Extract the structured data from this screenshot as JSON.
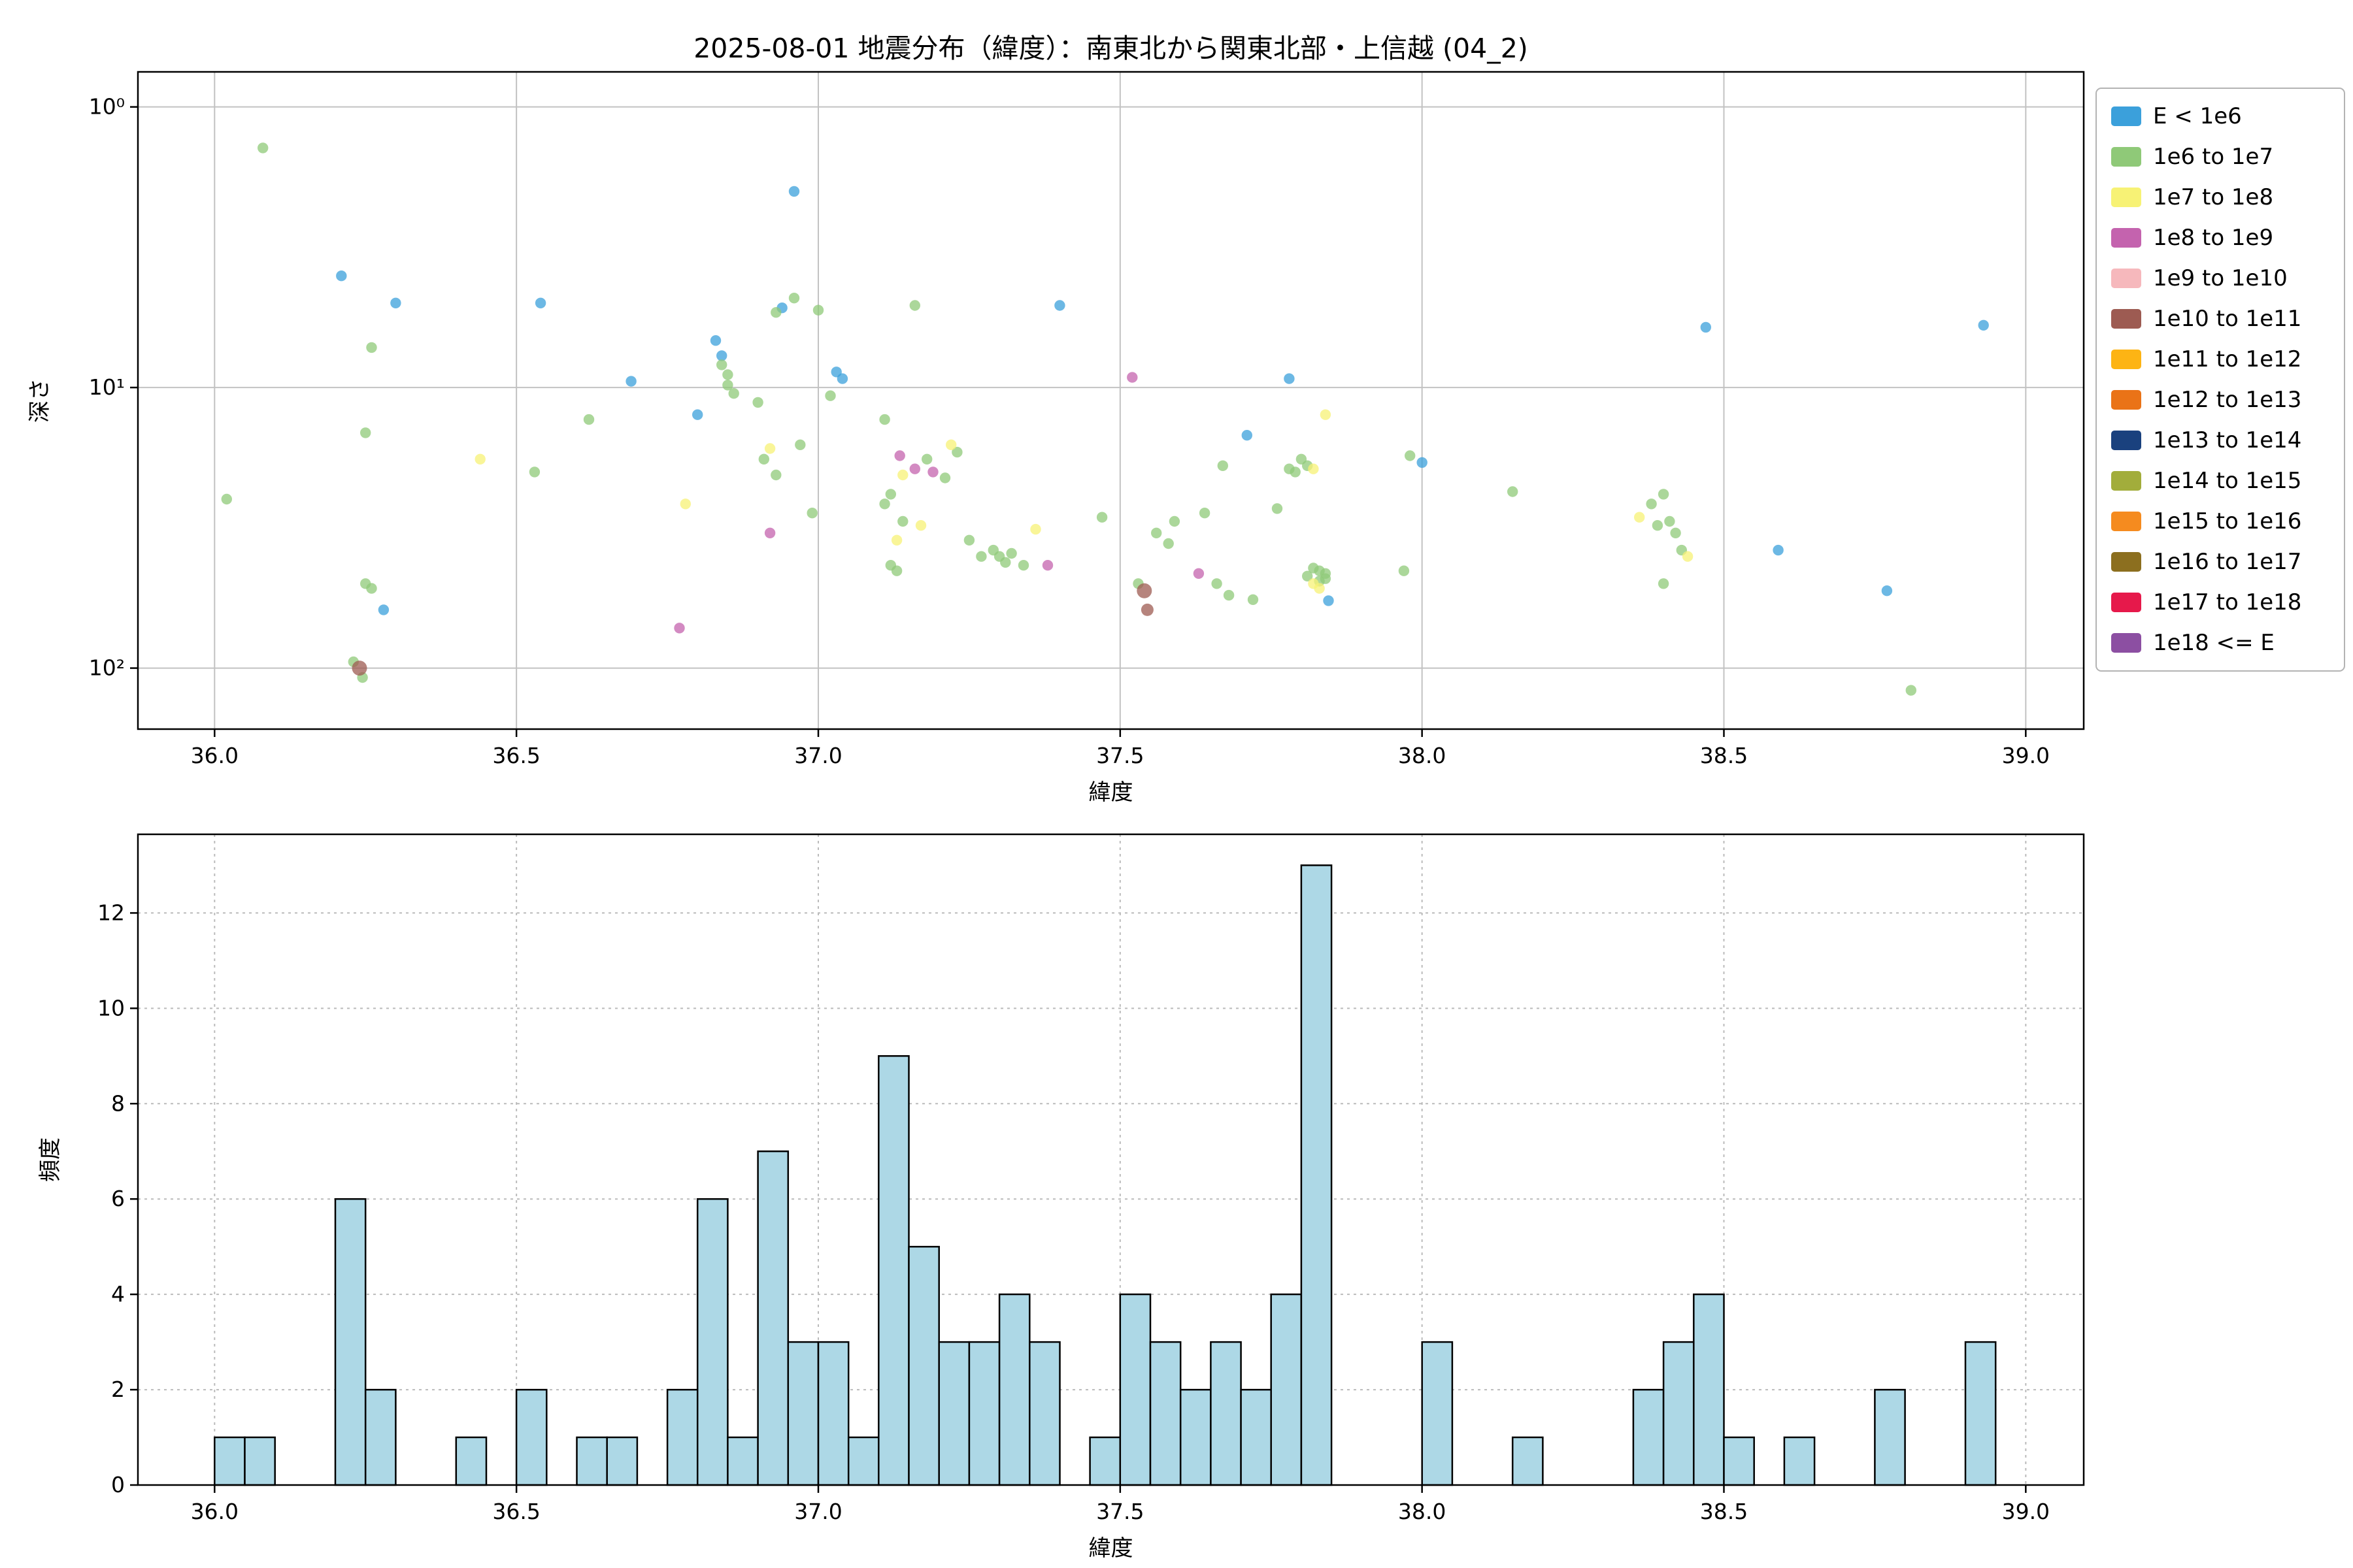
{
  "figure": {
    "title": "2025-08-01 地震分布（緯度）：南東北から関東北部・上信越 (04_2)",
    "background": "#ffffff"
  },
  "legend": {
    "position": "upper right, outside axes",
    "items": [
      {
        "label": "E < 1e6",
        "color": "#3ba0db"
      },
      {
        "label": "1e6 to 1e7",
        "color": "#8fc978"
      },
      {
        "label": "1e7 to 1e8",
        "color": "#f7f275"
      },
      {
        "label": "1e8 to 1e9",
        "color": "#c463ae"
      },
      {
        "label": "1e9 to 1e10",
        "color": "#f6b8bc"
      },
      {
        "label": "1e10 to 1e11",
        "color": "#9d5b52"
      },
      {
        "label": "1e11 to 1e12",
        "color": "#fdb414"
      },
      {
        "label": "1e12 to 1e13",
        "color": "#ea7317"
      },
      {
        "label": "1e13 to 1e14",
        "color": "#1a417e"
      },
      {
        "label": "1e14 to 1e15",
        "color": "#a2ad3b"
      },
      {
        "label": "1e15 to 1e16",
        "color": "#f58b1f"
      },
      {
        "label": "1e16 to 1e17",
        "color": "#8c6f1f"
      },
      {
        "label": "1e17 to 1e18",
        "color": "#e6194b"
      },
      {
        "label": "1e18 <= E",
        "color": "#8c4fa2"
      }
    ]
  },
  "chart_data": [
    {
      "type": "scatter",
      "title": "2025-08-01 地震分布（緯度）：南東北から関東北部・上信越 (04_2)",
      "xlabel": "緯度",
      "ylabel": "深さ",
      "x_ticks": [
        36.0,
        36.5,
        37.0,
        37.5,
        38.0,
        38.5,
        39.0
      ],
      "xlim": [
        35.873,
        39.096
      ],
      "y_scale": "log",
      "y_inverted": true,
      "ylim": [
        0.75,
        165
      ],
      "y_ticks": [
        {
          "v": 1,
          "label": "10⁰"
        },
        {
          "v": 10,
          "label": "10¹"
        },
        {
          "v": 100,
          "label": "10²"
        }
      ],
      "grid": "solid",
      "marker_alpha": 0.75,
      "series": [
        {
          "name": "E < 1e6",
          "points": [
            [
              36.21,
              4.0
            ],
            [
              36.28,
              62
            ],
            [
              36.3,
              5.0
            ],
            [
              36.54,
              5.0
            ],
            [
              36.69,
              9.5
            ],
            [
              36.8,
              12.5
            ],
            [
              36.83,
              6.8
            ],
            [
              36.84,
              7.7
            ],
            [
              36.94,
              5.2
            ],
            [
              36.96,
              2.0
            ],
            [
              37.03,
              8.8
            ],
            [
              37.04,
              9.3
            ],
            [
              37.4,
              5.1
            ],
            [
              37.71,
              14.8
            ],
            [
              37.78,
              9.3
            ],
            [
              37.845,
              57.5
            ],
            [
              38.0,
              18.5
            ],
            [
              38.47,
              6.1
            ],
            [
              38.59,
              38
            ],
            [
              38.77,
              53
            ],
            [
              38.93,
              6.0
            ]
          ]
        },
        {
          "name": "1e6 to 1e7",
          "points": [
            [
              36.02,
              25
            ],
            [
              36.08,
              1.4
            ],
            [
              36.23,
              95
            ],
            [
              36.245,
              108
            ],
            [
              36.25,
              14.5
            ],
            [
              36.25,
              50
            ],
            [
              36.26,
              7.2
            ],
            [
              36.26,
              52
            ],
            [
              36.53,
              20
            ],
            [
              36.62,
              13
            ],
            [
              36.84,
              8.3
            ],
            [
              36.85,
              9.0
            ],
            [
              36.85,
              9.8
            ],
            [
              36.86,
              10.5
            ],
            [
              36.9,
              11.3
            ],
            [
              36.91,
              18
            ],
            [
              36.93,
              5.4
            ],
            [
              36.93,
              20.5
            ],
            [
              36.96,
              4.8
            ],
            [
              36.97,
              16
            ],
            [
              36.99,
              28
            ],
            [
              37.0,
              5.3
            ],
            [
              37.02,
              10.7
            ],
            [
              37.11,
              13
            ],
            [
              37.11,
              26
            ],
            [
              37.12,
              24
            ],
            [
              37.12,
              43
            ],
            [
              37.13,
              45
            ],
            [
              37.14,
              30
            ],
            [
              37.16,
              5.1
            ],
            [
              37.18,
              18
            ],
            [
              37.21,
              21
            ],
            [
              37.23,
              17
            ],
            [
              37.25,
              35
            ],
            [
              37.27,
              40
            ],
            [
              37.29,
              38
            ],
            [
              37.3,
              40
            ],
            [
              37.31,
              42
            ],
            [
              37.32,
              39
            ],
            [
              37.34,
              43
            ],
            [
              37.47,
              29
            ],
            [
              37.53,
              50
            ],
            [
              37.56,
              33
            ],
            [
              37.58,
              36
            ],
            [
              37.59,
              30
            ],
            [
              37.64,
              28
            ],
            [
              37.66,
              50
            ],
            [
              37.67,
              19
            ],
            [
              37.68,
              55
            ],
            [
              37.72,
              57
            ],
            [
              37.76,
              27
            ],
            [
              37.78,
              19.5
            ],
            [
              37.79,
              20
            ],
            [
              37.8,
              18
            ],
            [
              37.81,
              19
            ],
            [
              37.81,
              47
            ],
            [
              37.82,
              44
            ],
            [
              37.83,
              45
            ],
            [
              37.83,
              49
            ],
            [
              37.84,
              46
            ],
            [
              37.84,
              48
            ],
            [
              37.97,
              45
            ],
            [
              37.98,
              17.5
            ],
            [
              38.15,
              23.5
            ],
            [
              38.38,
              26
            ],
            [
              38.39,
              31
            ],
            [
              38.4,
              24
            ],
            [
              38.4,
              50
            ],
            [
              38.41,
              30
            ],
            [
              38.42,
              33
            ],
            [
              38.43,
              38
            ],
            [
              38.81,
              120
            ]
          ]
        },
        {
          "name": "1e7 to 1e8",
          "points": [
            [
              36.44,
              18
            ],
            [
              36.78,
              26
            ],
            [
              36.92,
              16.5
            ],
            [
              37.13,
              35
            ],
            [
              37.14,
              20.5
            ],
            [
              37.17,
              31
            ],
            [
              37.22,
              16
            ],
            [
              37.36,
              32
            ],
            [
              37.82,
              19.5
            ],
            [
              37.82,
              50
            ],
            [
              37.83,
              52
            ],
            [
              37.84,
              12.5
            ],
            [
              38.36,
              29
            ],
            [
              38.44,
              40
            ]
          ]
        },
        {
          "name": "1e8 to 1e9",
          "points": [
            [
              36.77,
              72
            ],
            [
              36.92,
              33
            ],
            [
              37.135,
              17.5
            ],
            [
              37.16,
              19.5
            ],
            [
              37.19,
              20
            ],
            [
              37.38,
              43
            ],
            [
              37.52,
              9.2
            ],
            [
              37.63,
              46
            ]
          ]
        },
        {
          "name": "1e10 to 1e11",
          "points": [
            [
              36.24,
              100,
              11.5
            ],
            [
              37.54,
              53,
              11.5
            ],
            [
              37.545,
              62,
              9.5
            ]
          ]
        }
      ]
    },
    {
      "type": "histogram",
      "xlabel": "緯度",
      "ylabel": "頻度",
      "x_ticks": [
        36.0,
        36.5,
        37.0,
        37.5,
        38.0,
        38.5,
        39.0
      ],
      "xlim": [
        35.873,
        39.096
      ],
      "y_ticks": [
        0,
        2,
        4,
        6,
        8,
        10,
        12
      ],
      "ylim": [
        0,
        13.65
      ],
      "grid": "dashed",
      "bar_color": "#add8e6",
      "bar_edge_color": "#000000",
      "bin_width": 0.05,
      "bins": [
        [
          36.0,
          1
        ],
        [
          36.05,
          1
        ],
        [
          36.2,
          6
        ],
        [
          36.25,
          2
        ],
        [
          36.4,
          1
        ],
        [
          36.5,
          2
        ],
        [
          36.6,
          1
        ],
        [
          36.65,
          1
        ],
        [
          36.75,
          2
        ],
        [
          36.8,
          6
        ],
        [
          36.85,
          1
        ],
        [
          36.9,
          7
        ],
        [
          36.95,
          3
        ],
        [
          37.0,
          3
        ],
        [
          37.05,
          1
        ],
        [
          37.1,
          9
        ],
        [
          37.15,
          5
        ],
        [
          37.2,
          3
        ],
        [
          37.25,
          3
        ],
        [
          37.3,
          4
        ],
        [
          37.35,
          3
        ],
        [
          37.45,
          1
        ],
        [
          37.5,
          4
        ],
        [
          37.55,
          3
        ],
        [
          37.6,
          2
        ],
        [
          37.65,
          3
        ],
        [
          37.7,
          2
        ],
        [
          37.75,
          4
        ],
        [
          37.8,
          13
        ],
        [
          38.0,
          3
        ],
        [
          38.15,
          1
        ],
        [
          38.35,
          2
        ],
        [
          38.4,
          3
        ],
        [
          38.45,
          4
        ],
        [
          38.5,
          1
        ],
        [
          38.6,
          1
        ],
        [
          38.75,
          2
        ],
        [
          38.9,
          3
        ]
      ]
    }
  ]
}
